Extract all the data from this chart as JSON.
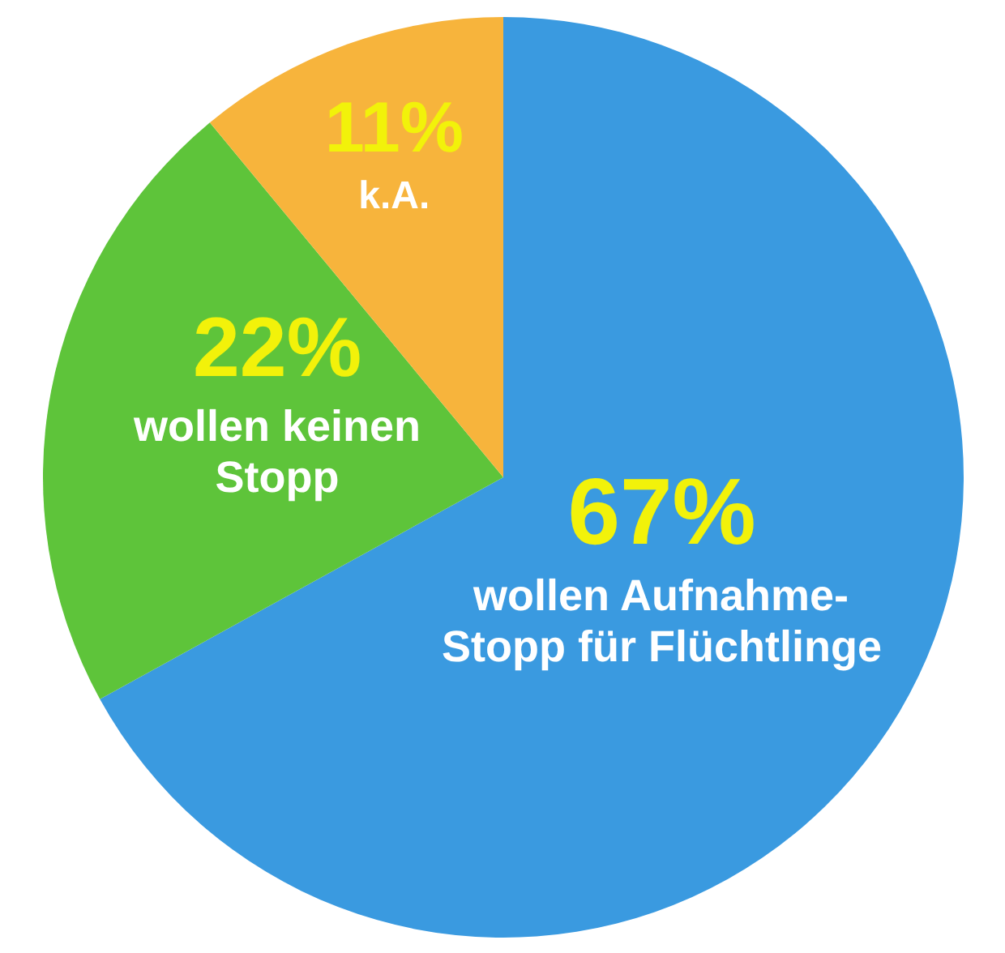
{
  "chart_data": {
    "type": "pie",
    "categories": [
      "wollen Aufnahme-\nStopp für Flüchtlinge",
      "wollen keinen\nStopp",
      "k.A."
    ],
    "values": [
      67,
      22,
      11
    ],
    "colors": [
      "#3a9ae0",
      "#5ec43a",
      "#f7b43c"
    ],
    "value_labels": [
      "67%",
      "22%",
      "11%"
    ]
  }
}
